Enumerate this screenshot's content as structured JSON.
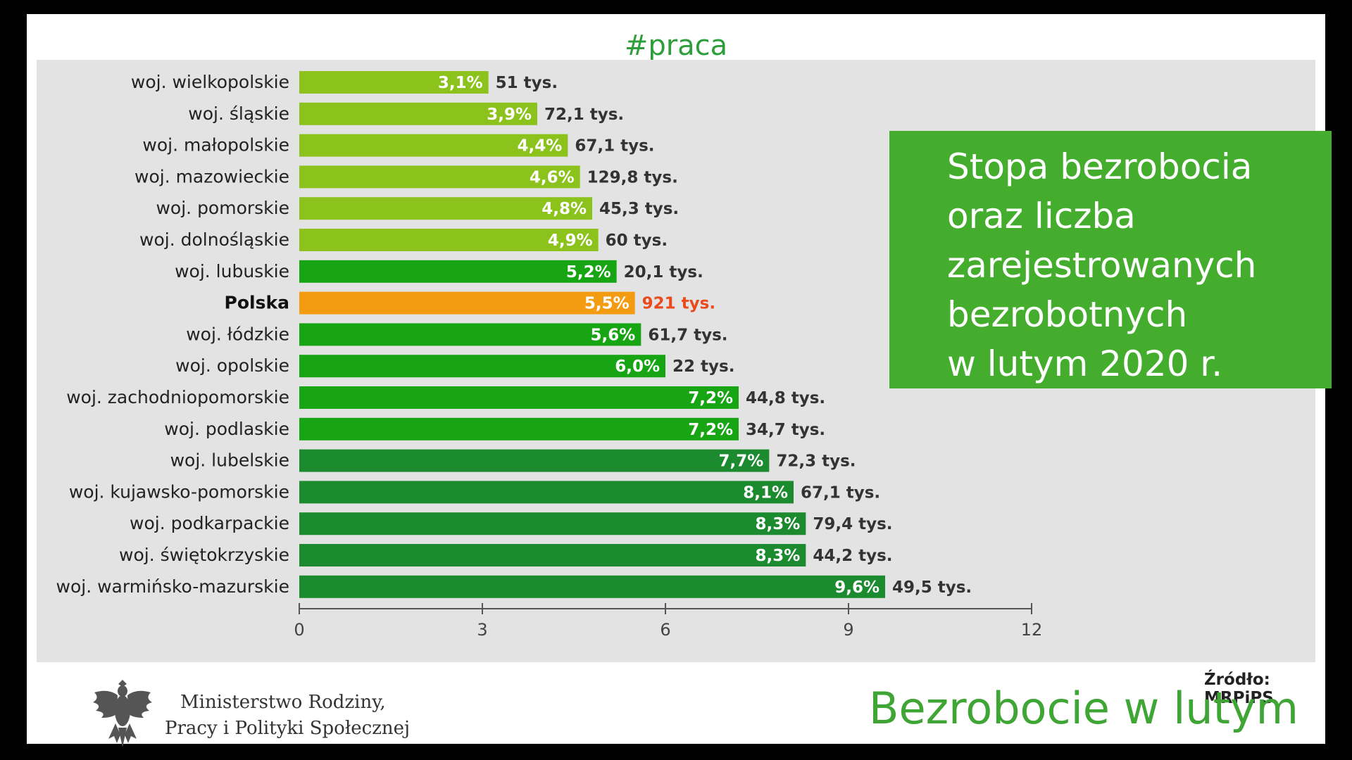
{
  "header": {
    "hashtag": "#praca"
  },
  "infobox": {
    "text": "Stopa bezrobocia\noraz liczba\nzarejestrowanych\nbezrobotnych\nw lutym 2020 r."
  },
  "source": "Źródło: MRPiPS",
  "footer": {
    "ministry_line1": "Ministerstwo Rodziny,",
    "ministry_line2": "Pracy i Polityki Społecznej",
    "title": "Bezrobocie w lutym"
  },
  "chart_data": {
    "type": "bar",
    "orientation": "horizontal",
    "categories": [
      "woj. wielkopolskie",
      "woj. śląskie",
      "woj. małopolskie",
      "woj. mazowieckie",
      "woj. pomorskie",
      "woj. dolnośląskie",
      "woj. lubuskie",
      "Polska",
      "woj. łódzkie",
      "woj. opolskie",
      "woj. zachodniopomorskie",
      "woj. podlaskie",
      "woj. lubelskie",
      "woj. kujawsko-pomorskie",
      "woj. podkarpackie",
      "woj. świętokrzyskie",
      "woj. warmińsko-mazurskie"
    ],
    "values": [
      3.1,
      3.9,
      4.4,
      4.6,
      4.8,
      4.9,
      5.2,
      5.5,
      5.6,
      6.0,
      7.2,
      7.2,
      7.7,
      8.1,
      8.3,
      8.3,
      9.6
    ],
    "value_labels": [
      "3,1%",
      "3,9%",
      "4,4%",
      "4,6%",
      "4,8%",
      "4,9%",
      "5,2%",
      "5,5%",
      "5,6%",
      "6,0%",
      "7,2%",
      "7,2%",
      "7,7%",
      "8,1%",
      "8,3%",
      "8,3%",
      "9,6%"
    ],
    "counts": [
      "51 tys.",
      "72,1 tys.",
      "67,1 tys.",
      "129,8 tys.",
      "45,3 tys.",
      "60 tys.",
      "20,1 tys.",
      "921 tys.",
      "61,7 tys.",
      "22 tys.",
      "44,8 tys.",
      "34,7 tys.",
      "72,3 tys.",
      "67,1 tys.",
      "79,4 tys.",
      "44,2 tys.",
      "49,5 tys."
    ],
    "bar_colors": [
      "#8cc21c",
      "#8cc21c",
      "#8cc21c",
      "#8cc21c",
      "#8cc21c",
      "#8cc21c",
      "#17a514",
      "#f39c12",
      "#17a514",
      "#17a514",
      "#17a514",
      "#17a514",
      "#1c8a2e",
      "#1c8a2e",
      "#1c8a2e",
      "#1c8a2e",
      "#1c8a2e"
    ],
    "highlight": "Polska",
    "xlim": [
      0,
      12
    ],
    "xticks": [
      0,
      3,
      6,
      9,
      12
    ],
    "xtick_labels": [
      "0",
      "3",
      "6",
      "9",
      "12"
    ],
    "grid": false
  }
}
